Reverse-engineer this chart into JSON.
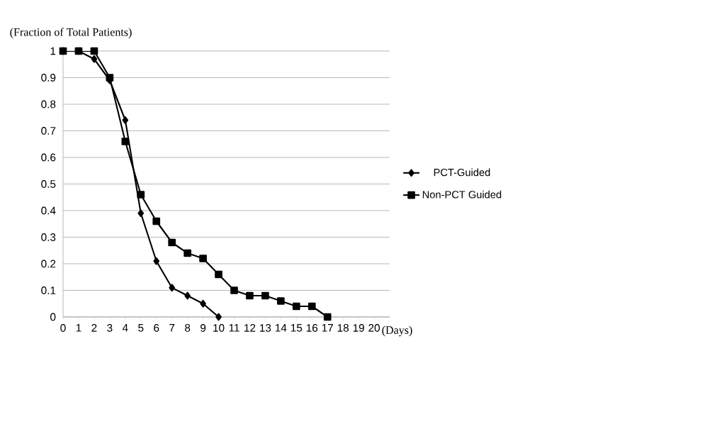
{
  "chart_data": {
    "type": "line",
    "xlabel": "(Days)",
    "ylabel": "(Fraction of Total Patients)",
    "x": [
      0,
      1,
      2,
      3,
      4,
      5,
      6,
      7,
      8,
      9,
      10,
      11,
      12,
      13,
      14,
      15,
      16,
      17
    ],
    "xlim": [
      0,
      21
    ],
    "xticks": [
      0,
      1,
      2,
      3,
      4,
      5,
      6,
      7,
      8,
      9,
      10,
      11,
      12,
      13,
      14,
      15,
      16,
      17,
      18,
      19,
      20
    ],
    "ylim": [
      0,
      1
    ],
    "yticks": [
      0,
      0.1,
      0.2,
      0.3,
      0.4,
      0.5,
      0.6,
      0.7,
      0.8,
      0.9,
      1
    ],
    "grid": "y",
    "legend": "right",
    "line_style": "solid",
    "series": [
      {
        "name": "PCT-Guided",
        "color": "#000000",
        "marker": "diamond",
        "values": [
          1,
          1,
          0.97,
          0.89,
          0.74,
          0.39,
          0.21,
          0.11,
          0.08,
          0.05,
          0,
          null,
          null,
          null,
          null,
          null,
          null,
          null
        ]
      },
      {
        "name": "Non-PCT Guided",
        "color": "#000000",
        "marker": "square",
        "values": [
          1,
          1,
          1,
          0.9,
          0.66,
          0.46,
          0.36,
          0.28,
          0.24,
          0.22,
          0.16,
          0.1,
          0.08,
          0.08,
          0.06,
          0.04,
          0.04,
          0
        ]
      }
    ]
  }
}
